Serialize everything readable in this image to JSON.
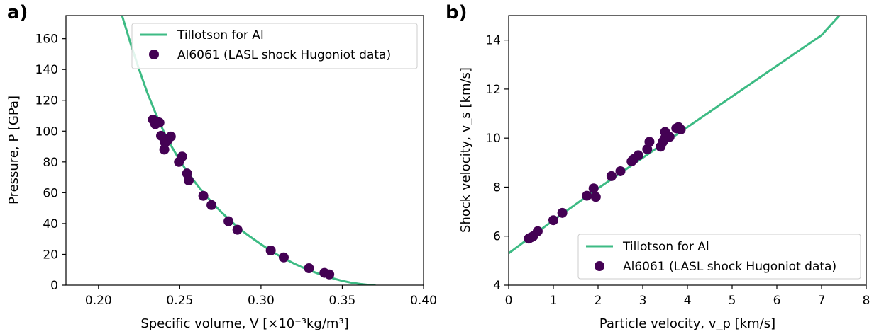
{
  "colors": {
    "line": "#3dbb84",
    "marker": "#440154"
  },
  "chart_data": [
    {
      "type": "scatter",
      "panel_label": "a)",
      "xlabel": "Specific volume, V [×10⁻³kg/m³]",
      "ylabel": "Pressure, P [GPa]",
      "xlim": [
        0.18,
        0.4
      ],
      "ylim": [
        0,
        175
      ],
      "xticks": [
        0.2,
        0.25,
        0.3,
        0.35,
        0.4
      ],
      "xtick_labels": [
        "0.20",
        "0.25",
        "0.30",
        "0.35",
        "0.40"
      ],
      "yticks": [
        0,
        20,
        40,
        60,
        80,
        100,
        120,
        140,
        160
      ],
      "ytick_labels": [
        "0",
        "20",
        "40",
        "60",
        "80",
        "100",
        "120",
        "140",
        "160"
      ],
      "legend_placement": "upper right",
      "grid": false,
      "series": [
        {
          "name": "Tillotson for Al",
          "kind": "line",
          "x": [
            0.2145,
            0.22,
            0.225,
            0.23,
            0.235,
            0.24,
            0.245,
            0.25,
            0.255,
            0.26,
            0.265,
            0.27,
            0.275,
            0.28,
            0.285,
            0.29,
            0.295,
            0.3,
            0.305,
            0.31,
            0.315,
            0.32,
            0.325,
            0.33,
            0.335,
            0.34,
            0.345,
            0.35,
            0.355,
            0.36,
            0.365,
            0.3705
          ],
          "y": [
            175,
            156,
            140,
            125,
            112,
            100,
            90,
            81,
            73,
            66,
            59.5,
            53.5,
            48,
            43,
            38.3,
            34,
            30.2,
            26.5,
            23,
            19.8,
            16.9,
            14.2,
            11.8,
            9.6,
            7.6,
            5.8,
            4.2,
            2.8,
            1.7,
            0.9,
            0.3,
            0
          ]
        },
        {
          "name": "Al6061 (LASL shock Hugoniot data)",
          "kind": "scatter",
          "x": [
            0.2335,
            0.2345,
            0.235,
            0.2365,
            0.2375,
            0.2385,
            0.2405,
            0.2405,
            0.241,
            0.2425,
            0.2445,
            0.2495,
            0.2515,
            0.2545,
            0.2555,
            0.2645,
            0.2695,
            0.28,
            0.2855,
            0.306,
            0.314,
            0.3295,
            0.339,
            0.342
          ],
          "y": [
            107.5,
            105.5,
            104.5,
            106,
            105.5,
            97,
            95,
            88,
            92.5,
            94,
            96.5,
            80,
            83.5,
            72.5,
            68,
            58,
            52,
            41.5,
            36,
            22.5,
            18,
            11,
            8,
            7
          ]
        }
      ]
    },
    {
      "type": "scatter",
      "panel_label": "b)",
      "xlabel": "Particle velocity, v_p [km/s]",
      "ylabel": "Shock velocity, v_s [km/s]",
      "xlim": [
        0,
        8
      ],
      "ylim": [
        4,
        15
      ],
      "xticks": [
        0,
        1,
        2,
        3,
        4,
        5,
        6,
        7,
        8
      ],
      "xtick_labels": [
        "0",
        "1",
        "2",
        "3",
        "4",
        "5",
        "6",
        "7",
        "8"
      ],
      "yticks": [
        4,
        6,
        8,
        10,
        12,
        14
      ],
      "ytick_labels": [
        "4",
        "6",
        "8",
        "10",
        "12",
        "14"
      ],
      "legend_placement": "lower right",
      "grid": false,
      "series": [
        {
          "name": "Tillotson for Al",
          "kind": "line",
          "x": [
            0,
            1,
            2,
            3,
            4,
            5,
            6,
            7,
            7.4
          ],
          "y": [
            5.3,
            6.65,
            7.95,
            9.2,
            10.45,
            11.7,
            12.95,
            14.2,
            15
          ]
        },
        {
          "name": "Al6061 (LASL shock Hugoniot data)",
          "kind": "scatter",
          "x": [
            0.45,
            0.5,
            0.55,
            0.65,
            1.0,
            1.2,
            1.75,
            1.9,
            1.95,
            2.3,
            2.5,
            2.75,
            2.8,
            2.9,
            3.1,
            3.15,
            3.4,
            3.45,
            3.5,
            3.5,
            3.6,
            3.75,
            3.8,
            3.85
          ],
          "y": [
            5.9,
            5.95,
            6.0,
            6.2,
            6.65,
            6.95,
            7.65,
            7.95,
            7.6,
            8.45,
            8.65,
            9.05,
            9.15,
            9.3,
            9.55,
            9.85,
            9.65,
            9.85,
            10.0,
            10.25,
            10.05,
            10.4,
            10.45,
            10.35
          ]
        }
      ]
    }
  ]
}
